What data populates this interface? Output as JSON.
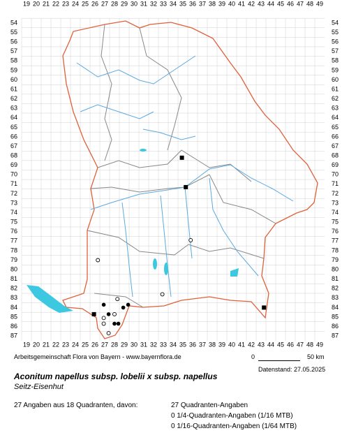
{
  "map": {
    "columns": [
      19,
      20,
      21,
      22,
      23,
      24,
      25,
      26,
      27,
      28,
      29,
      30,
      31,
      32,
      33,
      34,
      35,
      36,
      37,
      38,
      39,
      40,
      41,
      42,
      43,
      44,
      45,
      46,
      47,
      48,
      49
    ],
    "rows": [
      54,
      55,
      56,
      57,
      58,
      59,
      60,
      61,
      62,
      63,
      64,
      65,
      66,
      67,
      68,
      69,
      70,
      71,
      72,
      73,
      74,
      75,
      76,
      77,
      78,
      79,
      80,
      81,
      82,
      83,
      84,
      85,
      86,
      87
    ],
    "records": [
      {
        "col": 34.9,
        "row": 68.2,
        "symbol": "square"
      },
      {
        "col": 35.3,
        "row": 71.3,
        "symbol": "square"
      },
      {
        "col": 35.8,
        "row": 76.9,
        "symbol": "circle"
      },
      {
        "col": 26.3,
        "row": 79.0,
        "symbol": "circle"
      },
      {
        "col": 32.9,
        "row": 82.6,
        "symbol": "circle"
      },
      {
        "col": 43.3,
        "row": 84.0,
        "symbol": "square"
      },
      {
        "col": 25.9,
        "row": 84.7,
        "symbol": "square"
      },
      {
        "col": 26.9,
        "row": 83.7,
        "symbol": "dot"
      },
      {
        "col": 28.3,
        "row": 83.1,
        "symbol": "circle"
      },
      {
        "col": 28.9,
        "row": 84.0,
        "symbol": "dot"
      },
      {
        "col": 29.4,
        "row": 83.7,
        "symbol": "dot"
      },
      {
        "col": 26.9,
        "row": 85.1,
        "symbol": "circle"
      },
      {
        "col": 27.4,
        "row": 84.7,
        "symbol": "dot"
      },
      {
        "col": 28.0,
        "row": 84.7,
        "symbol": "circle"
      },
      {
        "col": 26.9,
        "row": 85.7,
        "symbol": "circle"
      },
      {
        "col": 28.0,
        "row": 85.7,
        "symbol": "dot"
      },
      {
        "col": 28.4,
        "row": 85.7,
        "symbol": "dot"
      },
      {
        "col": 27.4,
        "row": 86.7,
        "symbol": "circle"
      }
    ]
  },
  "credit": "Arbeitsgemeinschaft Flora von Bayern - www.bayernflora.de",
  "scale": {
    "start": "0",
    "end": "50 km"
  },
  "date": "Datenstand: 27.05.2025",
  "title": "Aconitum napellus subsp. lobelii x subsp. napellus",
  "subtitle": "Seitz-Eisenhut",
  "summary": {
    "total": "27 Angaben aus 18 Quadranten, davon:",
    "lines": [
      "27 Quadranten-Angaben",
      "0 1/4-Quadranten-Angaben (1/16 MTB)",
      "0 1/16-Quadranten-Angaben (1/64 MTB)"
    ]
  }
}
